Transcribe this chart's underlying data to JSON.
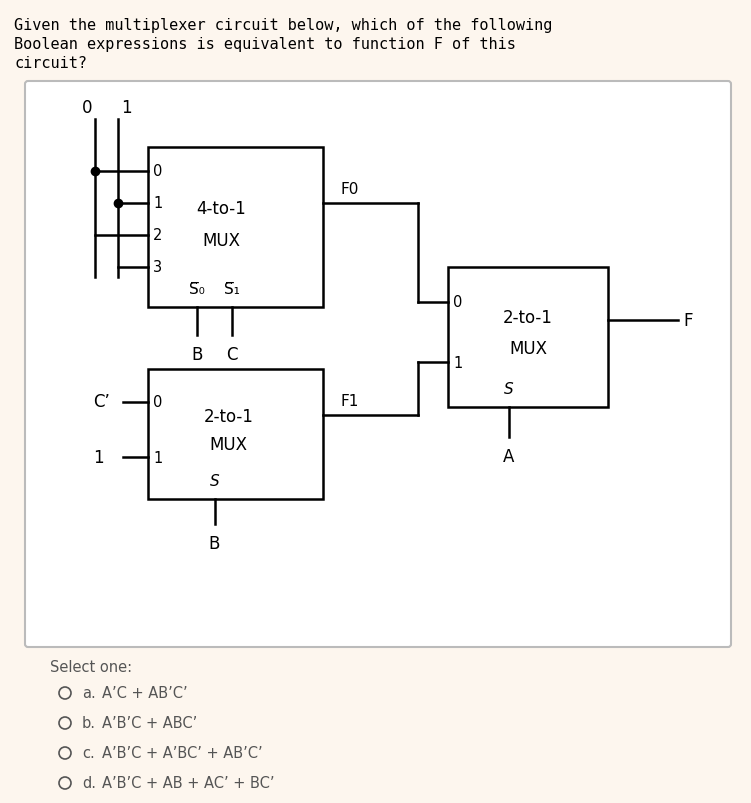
{
  "title_lines": [
    "Given the multiplexer circuit below, which of the following",
    "Boolean expressions is equivalent to function F of this",
    "circuit?"
  ],
  "bg_color": "#fdf6ee",
  "panel_bg": "#ffffff",
  "panel_border": "#bbbbbb",
  "select_one": "Select one:",
  "options": [
    {
      "label": "a.",
      "text": "A’C + AB’C’"
    },
    {
      "label": "b.",
      "text": "A’B’C + ABC’"
    },
    {
      "label": "c.",
      "text": "A’B’C + A’BC’ + AB’C’"
    },
    {
      "label": "d.",
      "text": "A’B’C + AB + AC’ + BC’"
    }
  ],
  "font_color": "#555555",
  "circuit_font_color": "#222222"
}
